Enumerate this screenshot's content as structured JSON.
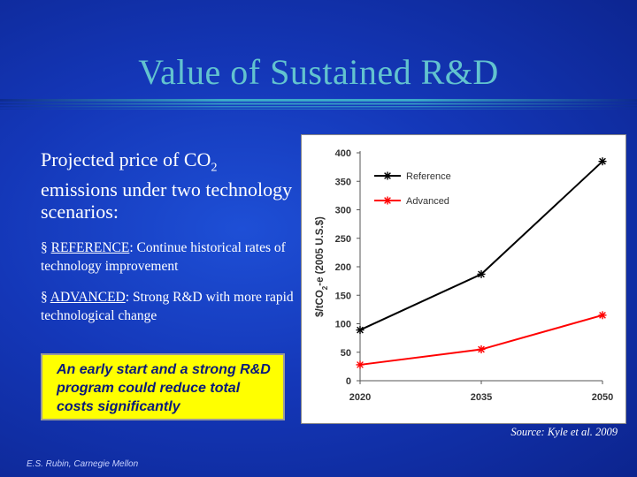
{
  "slide": {
    "title": "Value of Sustained R&D",
    "intro_prefix": "Projected price of CO",
    "intro_sub": "2",
    "intro_suffix": "emissions under two technology scenarios:",
    "bullets": [
      {
        "marker": "§",
        "term": "REFERENCE",
        "text": ": Continue historical rates of technology improvement"
      },
      {
        "marker": "§",
        "term": "ADVANCED",
        "text": ": Strong R&D with more rapid technological change"
      }
    ],
    "callout": "An early start and a strong R&D program could reduce total costs significantly",
    "source": "Source: Kyle et al. 2009",
    "author": "E.S. Rubin, Carnegie Mellon"
  },
  "colors": {
    "title": "#62c3cf",
    "reference": "#000000",
    "advanced": "#ff0000",
    "callout_bg": "#ffff00"
  },
  "chart_data": {
    "type": "line",
    "x": [
      2020,
      2035,
      2050
    ],
    "categories": [
      "2020",
      "2035",
      "2050"
    ],
    "series": [
      {
        "name": "Reference",
        "values": [
          89,
          187,
          385
        ],
        "color": "#000000",
        "marker": "asterisk"
      },
      {
        "name": "Advanced",
        "values": [
          28,
          55,
          115
        ],
        "color": "#ff0000",
        "marker": "asterisk"
      }
    ],
    "ylabel_prefix": "$/tCO",
    "ylabel_sub": "2",
    "ylabel_suffix": "-e (2005 U.S.$)",
    "ylim": [
      0,
      400
    ],
    "yticks": [
      0,
      50,
      100,
      150,
      200,
      250,
      300,
      350,
      400
    ],
    "grid": false,
    "legend_position": "top-left"
  }
}
